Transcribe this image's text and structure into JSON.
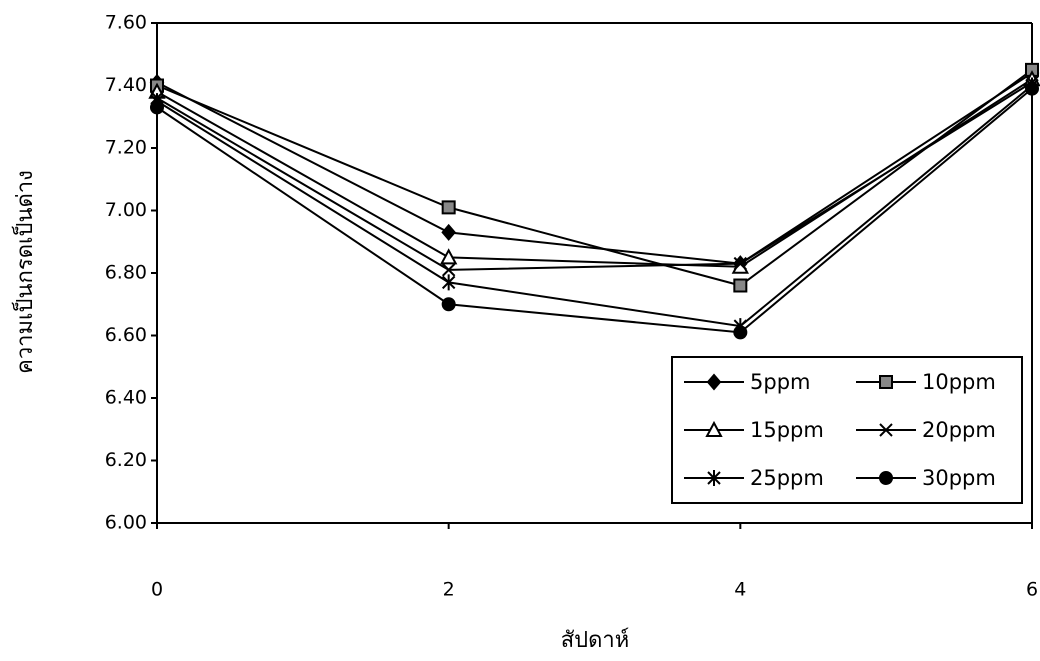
{
  "chart_data": {
    "type": "line",
    "x_label": "สัปดาห์",
    "y_label": "ความเป็นกรดเป็นด่าง",
    "x": [
      0,
      2,
      4,
      6
    ],
    "xlim": [
      0,
      6
    ],
    "xticks": [
      0,
      2,
      4,
      6
    ],
    "ylim": [
      6.0,
      7.6
    ],
    "yticks": [
      {
        "value": 6.0,
        "label": "6.00"
      },
      {
        "value": 6.2,
        "label": "6.20"
      },
      {
        "value": 6.4,
        "label": "6.40"
      },
      {
        "value": 6.6,
        "label": "6.60"
      },
      {
        "value": 6.8,
        "label": "6.80"
      },
      {
        "value": 7.0,
        "label": "7.00"
      },
      {
        "value": 7.2,
        "label": "7.20"
      },
      {
        "value": 7.4,
        "label": "7.40"
      },
      {
        "value": 7.6,
        "label": "7.60"
      }
    ],
    "legend": "lower right",
    "series": [
      {
        "name": "5ppm",
        "color": "#000000",
        "marker": "diamond",
        "values": [
          7.41,
          6.93,
          6.83,
          7.44
        ]
      },
      {
        "name": "10ppm",
        "color": "#000000",
        "marker": "square",
        "values": [
          7.4,
          7.01,
          6.76,
          7.45
        ]
      },
      {
        "name": "15ppm",
        "color": "#000000",
        "marker": "triangle",
        "values": [
          7.38,
          6.85,
          6.82,
          7.42
        ]
      },
      {
        "name": "20ppm",
        "color": "#000000",
        "marker": "x",
        "values": [
          7.36,
          6.81,
          6.83,
          7.41
        ]
      },
      {
        "name": "25ppm",
        "color": "#000000",
        "marker": "asterisk",
        "values": [
          7.35,
          6.77,
          6.63,
          7.4
        ]
      },
      {
        "name": "30ppm",
        "color": "#000000",
        "marker": "circle",
        "values": [
          7.33,
          6.7,
          6.61,
          7.39
        ]
      }
    ]
  }
}
